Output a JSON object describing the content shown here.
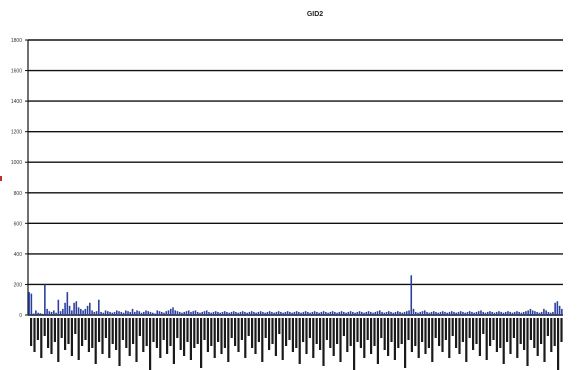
{
  "chart_data": {
    "type": "bar",
    "title": "GID2",
    "xlabel": "",
    "ylabel": "",
    "ylim": [
      0,
      1800
    ],
    "yticks": [
      0,
      200,
      400,
      600,
      800,
      1000,
      1200,
      1400,
      1600,
      1800
    ],
    "grid": true,
    "legend": "none",
    "bar_color": "#2a3f9e",
    "grid_color": "#111111",
    "series": [
      {
        "values": [
          150,
          140,
          10,
          30,
          15,
          12,
          8,
          200,
          40,
          25,
          20,
          30,
          15,
          100,
          25,
          40,
          80,
          150,
          60,
          30,
          80,
          90,
          50,
          40,
          30,
          40,
          60,
          80,
          30,
          20,
          25,
          100,
          20,
          15,
          30,
          25,
          20,
          15,
          20,
          30,
          25,
          20,
          15,
          30,
          25,
          20,
          40,
          20,
          30,
          25,
          15,
          20,
          30,
          25,
          20,
          15,
          10,
          30,
          25,
          20,
          15,
          25,
          30,
          40,
          50,
          30,
          25,
          20,
          15,
          20,
          25,
          30,
          20,
          25,
          30,
          20,
          15,
          20,
          25,
          30,
          20,
          15,
          20,
          25,
          20,
          15,
          20,
          25,
          20,
          15,
          20,
          25,
          20,
          15,
          20,
          25,
          20,
          15,
          20,
          25,
          20,
          15,
          20,
          25,
          20,
          15,
          20,
          25,
          20,
          15,
          20,
          25,
          20,
          15,
          20,
          25,
          20,
          15,
          20,
          25,
          20,
          15,
          20,
          25,
          20,
          15,
          20,
          25,
          20,
          15,
          20,
          25,
          20,
          15,
          20,
          25,
          20,
          15,
          20,
          25,
          20,
          15,
          20,
          25,
          20,
          15,
          20,
          25,
          20,
          15,
          20,
          25,
          20,
          15,
          20,
          25,
          30,
          20,
          15,
          20,
          25,
          20,
          15,
          20,
          25,
          20,
          15,
          20,
          25,
          30,
          260,
          40,
          20,
          15,
          20,
          25,
          30,
          20,
          15,
          20,
          25,
          20,
          15,
          20,
          25,
          20,
          15,
          20,
          25,
          20,
          15,
          20,
          25,
          20,
          15,
          20,
          25,
          20,
          15,
          20,
          25,
          30,
          20,
          15,
          20,
          25,
          20,
          15,
          20,
          25,
          20,
          15,
          20,
          25,
          20,
          15,
          20,
          25,
          20,
          15,
          20,
          25,
          30,
          40,
          30,
          25,
          20,
          15,
          20,
          40,
          30,
          20,
          15,
          20,
          80,
          90,
          60,
          40
        ]
      }
    ]
  }
}
